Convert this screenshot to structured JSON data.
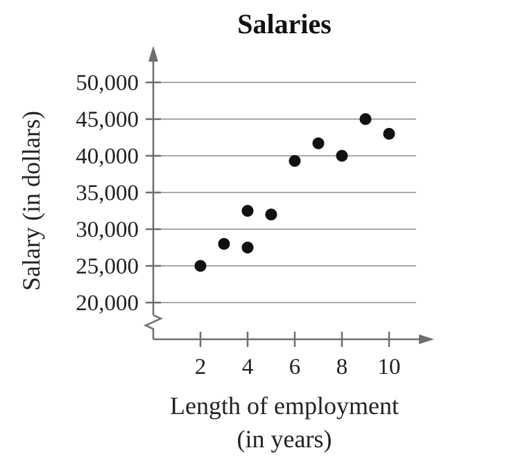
{
  "chart_data": {
    "type": "scatter",
    "title": "Salaries",
    "xlabel_lines": [
      "Length of employment",
      "(in years)"
    ],
    "ylabel": "Salary (in dollars)",
    "x_ticks": [
      2,
      4,
      6,
      8,
      10
    ],
    "x_tick_labels": [
      "2",
      "4",
      "6",
      "8",
      "10"
    ],
    "y_ticks": [
      20000,
      25000,
      30000,
      35000,
      40000,
      45000,
      50000
    ],
    "y_tick_labels": [
      "20,000",
      "25,000",
      "30,000",
      "35,000",
      "40,000",
      "45,000",
      "50,000"
    ],
    "xlim": [
      0,
      11
    ],
    "ylim": [
      20000,
      50000
    ],
    "y_axis_break": true,
    "grid": true,
    "point_color": "#111111",
    "points": [
      {
        "x": 2,
        "y": 25000
      },
      {
        "x": 3,
        "y": 28000
      },
      {
        "x": 4,
        "y": 27500
      },
      {
        "x": 4,
        "y": 32500
      },
      {
        "x": 5,
        "y": 32000
      },
      {
        "x": 6,
        "y": 39300
      },
      {
        "x": 7,
        "y": 41700
      },
      {
        "x": 8,
        "y": 40000
      },
      {
        "x": 9,
        "y": 45000
      },
      {
        "x": 10,
        "y": 43000
      }
    ]
  }
}
